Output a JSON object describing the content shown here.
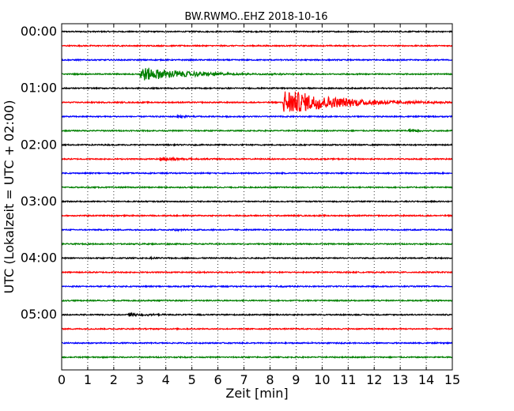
{
  "chart_data": {
    "type": "line",
    "title": "BW.RWMO..EHZ 2018-10-16",
    "xlabel": "Zeit  [min]",
    "ylabel": "UTC (Lokalzeit = UTC + 02:00)",
    "xlim": [
      0,
      15
    ],
    "x_ticks": [
      "0",
      "1",
      "2",
      "3",
      "4",
      "5",
      "6",
      "7",
      "8",
      "9",
      "10",
      "11",
      "12",
      "13",
      "14",
      "15"
    ],
    "y_ticks": [
      {
        "label": "00:00",
        "minutes": 0
      },
      {
        "label": "01:00",
        "minutes": 60
      },
      {
        "label": "02:00",
        "minutes": 120
      },
      {
        "label": "03:00",
        "minutes": 180
      },
      {
        "label": "04:00",
        "minutes": 240
      },
      {
        "label": "05:00",
        "minutes": 300
      }
    ],
    "ylim_minutes": [
      0,
      360
    ],
    "grid": "vertical dotted at each minute",
    "trace_colors": [
      "#000000",
      "#ff0000",
      "#0000ff",
      "#008000"
    ],
    "traces": [
      {
        "start_minutes": 0,
        "color": "#000000",
        "events": []
      },
      {
        "start_minutes": 15,
        "color": "#ff0000",
        "events": []
      },
      {
        "start_minutes": 30,
        "color": "#0000ff",
        "events": []
      },
      {
        "start_minutes": 45,
        "color": "#008000",
        "events": [
          {
            "t": 3.0,
            "amp": 1.0,
            "decay": 1.8
          }
        ]
      },
      {
        "start_minutes": 60,
        "color": "#000000",
        "events": []
      },
      {
        "start_minutes": 75,
        "color": "#ff0000",
        "events": [
          {
            "t": 8.5,
            "amp": 1.9,
            "decay": 2.0
          }
        ]
      },
      {
        "start_minutes": 90,
        "color": "#0000ff",
        "events": [
          {
            "t": 4.4,
            "amp": 0.18,
            "decay": 0.6
          }
        ]
      },
      {
        "start_minutes": 105,
        "color": "#008000",
        "events": [
          {
            "t": 13.3,
            "amp": 0.3,
            "decay": 0.5
          }
        ]
      },
      {
        "start_minutes": 120,
        "color": "#000000",
        "events": []
      },
      {
        "start_minutes": 135,
        "color": "#ff0000",
        "events": [
          {
            "t": 3.75,
            "amp": 0.28,
            "decay": 0.9
          }
        ]
      },
      {
        "start_minutes": 150,
        "color": "#0000ff",
        "events": []
      },
      {
        "start_minutes": 165,
        "color": "#008000",
        "events": []
      },
      {
        "start_minutes": 180,
        "color": "#000000",
        "events": []
      },
      {
        "start_minutes": 195,
        "color": "#ff0000",
        "events": []
      },
      {
        "start_minutes": 210,
        "color": "#0000ff",
        "events": [
          {
            "t": 4.3,
            "amp": 0.15,
            "decay": 0.3
          },
          {
            "t": 12.7,
            "amp": 0.12,
            "decay": 0.2
          }
        ]
      },
      {
        "start_minutes": 225,
        "color": "#008000",
        "events": []
      },
      {
        "start_minutes": 240,
        "color": "#000000",
        "events": [
          {
            "t": 3.4,
            "amp": 0.1,
            "decay": 0.3
          }
        ]
      },
      {
        "start_minutes": 255,
        "color": "#ff0000",
        "events": [
          {
            "t": 5.1,
            "amp": 0.1,
            "decay": 0.3
          }
        ]
      },
      {
        "start_minutes": 270,
        "color": "#0000ff",
        "events": [
          {
            "t": 8.2,
            "amp": 0.1,
            "decay": 0.3
          }
        ]
      },
      {
        "start_minutes": 285,
        "color": "#008000",
        "events": []
      },
      {
        "start_minutes": 300,
        "color": "#000000",
        "events": [
          {
            "t": 2.55,
            "amp": 0.32,
            "decay": 0.6
          }
        ]
      },
      {
        "start_minutes": 315,
        "color": "#ff0000",
        "events": []
      },
      {
        "start_minutes": 330,
        "color": "#0000ff",
        "events": [
          {
            "t": 9.5,
            "amp": 0.2,
            "decay": 0.2
          }
        ]
      },
      {
        "start_minutes": 345,
        "color": "#008000",
        "events": []
      }
    ]
  }
}
